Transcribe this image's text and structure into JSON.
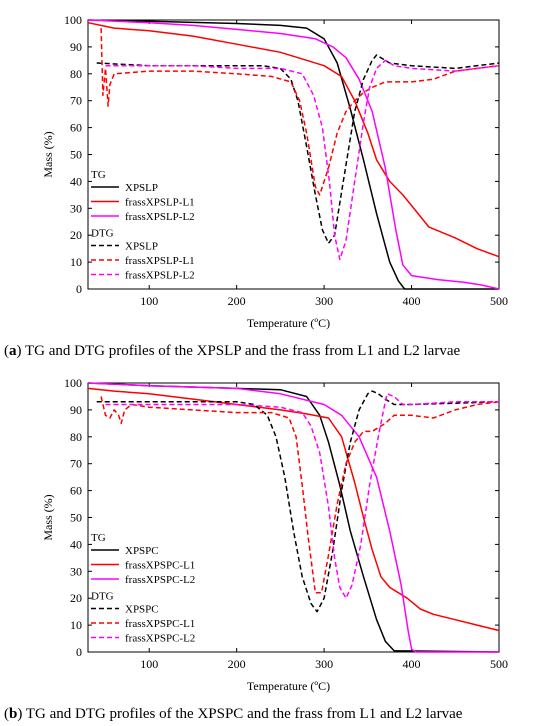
{
  "chart_data": [
    {
      "type": "line",
      "caption_label": "a",
      "caption_text": "TG and DTG profiles of the XPSLP and the frass from L1 and L2 larvae",
      "xlabel": "Temperature (ºC)",
      "ylabel": "Mass (%)",
      "xlim": [
        30,
        500
      ],
      "ylim": [
        0,
        100
      ],
      "xticks": [
        100,
        200,
        300,
        400,
        500
      ],
      "yticks": [
        0,
        10,
        20,
        30,
        40,
        50,
        60,
        70,
        80,
        90,
        100
      ],
      "legend": {
        "position": "left",
        "group_tg": "TG",
        "group_dtg": "DTG"
      },
      "series": [
        {
          "name": "XPSLP",
          "group": "TG",
          "color": "#000000",
          "style": "solid",
          "points": [
            [
              30,
              100
            ],
            [
              100,
              99.5
            ],
            [
              200,
              98.7
            ],
            [
              250,
              98
            ],
            [
              280,
              97
            ],
            [
              300,
              93
            ],
            [
              315,
              84
            ],
            [
              330,
              67
            ],
            [
              345,
              48
            ],
            [
              360,
              28
            ],
            [
              375,
              10
            ],
            [
              385,
              3
            ],
            [
              392,
              0
            ],
            [
              500,
              0
            ]
          ]
        },
        {
          "name": "frassXPSLP-L1",
          "group": "TG",
          "color": "#ff0000",
          "style": "solid",
          "points": [
            [
              30,
              99
            ],
            [
              60,
              97
            ],
            [
              100,
              96
            ],
            [
              150,
              94
            ],
            [
              200,
              91
            ],
            [
              250,
              88
            ],
            [
              280,
              85
            ],
            [
              300,
              83
            ],
            [
              320,
              79
            ],
            [
              335,
              70
            ],
            [
              350,
              58
            ],
            [
              360,
              48
            ],
            [
              375,
              40
            ],
            [
              390,
              35
            ],
            [
              400,
              31
            ],
            [
              420,
              23
            ],
            [
              450,
              19
            ],
            [
              475,
              15
            ],
            [
              500,
              12
            ]
          ]
        },
        {
          "name": "frassXPSLP-L2",
          "group": "TG",
          "color": "#ff00ff",
          "style": "solid",
          "points": [
            [
              30,
              100
            ],
            [
              100,
              99
            ],
            [
              150,
              98
            ],
            [
              200,
              96.5
            ],
            [
              250,
              95
            ],
            [
              290,
              93
            ],
            [
              310,
              90
            ],
            [
              325,
              86
            ],
            [
              340,
              78
            ],
            [
              355,
              66
            ],
            [
              370,
              45
            ],
            [
              382,
              22
            ],
            [
              390,
              9
            ],
            [
              400,
              5
            ],
            [
              430,
              3.5
            ],
            [
              460,
              2.5
            ],
            [
              480,
              1.5
            ],
            [
              500,
              0
            ]
          ]
        },
        {
          "name": "XPSLP",
          "group": "DTG",
          "color": "#000000",
          "style": "dashed",
          "points": [
            [
              40,
              84
            ],
            [
              100,
              83
            ],
            [
              150,
              83
            ],
            [
              200,
              83
            ],
            [
              230,
              83
            ],
            [
              250,
              82
            ],
            [
              262,
              78
            ],
            [
              270,
              70
            ],
            [
              280,
              53
            ],
            [
              290,
              35
            ],
            [
              298,
              22
            ],
            [
              305,
              17
            ],
            [
              312,
              20
            ],
            [
              322,
              40
            ],
            [
              335,
              66
            ],
            [
              345,
              78
            ],
            [
              355,
              85
            ],
            [
              360,
              87
            ],
            [
              365,
              86
            ],
            [
              375,
              84
            ],
            [
              400,
              83
            ],
            [
              450,
              82
            ],
            [
              500,
              84
            ]
          ]
        },
        {
          "name": "frassXPSLP-L1",
          "group": "DTG",
          "color": "#ff0000",
          "style": "dashed",
          "points": [
            [
              45,
              97
            ],
            [
              47,
              72
            ],
            [
              50,
              82
            ],
            [
              53,
              68
            ],
            [
              55,
              76
            ],
            [
              60,
              80
            ],
            [
              100,
              81
            ],
            [
              150,
              81
            ],
            [
              200,
              80
            ],
            [
              240,
              79
            ],
            [
              262,
              77
            ],
            [
              272,
              70
            ],
            [
              280,
              58
            ],
            [
              290,
              38
            ],
            [
              295,
              35
            ],
            [
              305,
              45
            ],
            [
              315,
              58
            ],
            [
              325,
              66
            ],
            [
              335,
              70
            ],
            [
              345,
              73
            ],
            [
              355,
              75
            ],
            [
              370,
              77
            ],
            [
              400,
              77
            ],
            [
              425,
              78
            ],
            [
              450,
              81
            ],
            [
              500,
              83
            ]
          ]
        },
        {
          "name": "frassXPSLP-L2",
          "group": "DTG",
          "color": "#ff00ff",
          "style": "dashed",
          "points": [
            [
              50,
              83
            ],
            [
              100,
              83
            ],
            [
              150,
              83
            ],
            [
              200,
              82
            ],
            [
              250,
              82
            ],
            [
              275,
              80
            ],
            [
              288,
              72
            ],
            [
              298,
              60
            ],
            [
              306,
              40
            ],
            [
              312,
              20
            ],
            [
              318,
              11
            ],
            [
              325,
              18
            ],
            [
              335,
              40
            ],
            [
              345,
              62
            ],
            [
              352,
              75
            ],
            [
              360,
              82
            ],
            [
              370,
              85
            ],
            [
              380,
              83
            ],
            [
              400,
              82
            ],
            [
              450,
              81
            ],
            [
              500,
              83
            ]
          ]
        }
      ]
    },
    {
      "type": "line",
      "caption_label": "b",
      "caption_text": "TG and DTG profiles of the XPSPC and the frass from L1 and L2 larvae",
      "xlabel": "Temperature (ºC)",
      "ylabel": "Mass (%)",
      "xlim": [
        30,
        500
      ],
      "ylim": [
        0,
        100
      ],
      "xticks": [
        100,
        200,
        300,
        400,
        500
      ],
      "yticks": [
        0,
        10,
        20,
        30,
        40,
        50,
        60,
        70,
        80,
        90,
        100
      ],
      "legend": {
        "position": "left",
        "group_tg": "TG",
        "group_dtg": "DTG"
      },
      "series": [
        {
          "name": "XPSPC",
          "group": "TG",
          "color": "#000000",
          "style": "solid",
          "points": [
            [
              30,
              100
            ],
            [
              100,
              99
            ],
            [
              200,
              98
            ],
            [
              250,
              97.5
            ],
            [
              280,
              95
            ],
            [
              295,
              88
            ],
            [
              305,
              78
            ],
            [
              318,
              62
            ],
            [
              330,
              45
            ],
            [
              345,
              28
            ],
            [
              360,
              12
            ],
            [
              370,
              4
            ],
            [
              380,
              0.5
            ],
            [
              500,
              0
            ]
          ]
        },
        {
          "name": "frassXPSPC-L1",
          "group": "TG",
          "color": "#ff0000",
          "style": "solid",
          "points": [
            [
              30,
              98
            ],
            [
              60,
              97
            ],
            [
              100,
              96
            ],
            [
              150,
              94
            ],
            [
              200,
              92
            ],
            [
              250,
              90
            ],
            [
              280,
              88.5
            ],
            [
              305,
              87
            ],
            [
              320,
              80
            ],
            [
              335,
              63
            ],
            [
              345,
              50
            ],
            [
              355,
              38
            ],
            [
              365,
              28
            ],
            [
              375,
              24
            ],
            [
              395,
              20
            ],
            [
              410,
              16
            ],
            [
              425,
              14
            ],
            [
              450,
              12
            ],
            [
              475,
              10
            ],
            [
              500,
              8
            ]
          ]
        },
        {
          "name": "frassXPSPC-L2",
          "group": "TG",
          "color": "#ff00ff",
          "style": "solid",
          "points": [
            [
              30,
              100
            ],
            [
              100,
              99
            ],
            [
              200,
              98
            ],
            [
              250,
              96
            ],
            [
              300,
              92
            ],
            [
              320,
              88
            ],
            [
              340,
              80
            ],
            [
              360,
              65
            ],
            [
              375,
              45
            ],
            [
              388,
              25
            ],
            [
              396,
              8
            ],
            [
              400,
              1
            ],
            [
              405,
              0
            ],
            [
              500,
              0
            ]
          ]
        },
        {
          "name": "XPSPC",
          "group": "DTG",
          "color": "#000000",
          "style": "dashed",
          "points": [
            [
              40,
              93
            ],
            [
              100,
              93
            ],
            [
              150,
              93
            ],
            [
              200,
              93
            ],
            [
              220,
              92
            ],
            [
              235,
              88
            ],
            [
              245,
              80
            ],
            [
              255,
              65
            ],
            [
              265,
              45
            ],
            [
              275,
              28
            ],
            [
              285,
              18
            ],
            [
              292,
              15
            ],
            [
              300,
              20
            ],
            [
              310,
              38
            ],
            [
              320,
              60
            ],
            [
              330,
              78
            ],
            [
              340,
              90
            ],
            [
              350,
              96
            ],
            [
              355,
              97
            ],
            [
              362,
              96
            ],
            [
              370,
              94
            ],
            [
              380,
              92
            ],
            [
              400,
              92
            ],
            [
              450,
              92.5
            ],
            [
              500,
              93
            ]
          ]
        },
        {
          "name": "frassXPSPC-L1",
          "group": "DTG",
          "color": "#ff0000",
          "style": "dashed",
          "points": [
            [
              45,
              95
            ],
            [
              50,
              88
            ],
            [
              55,
              87
            ],
            [
              60,
              90
            ],
            [
              65,
              88
            ],
            [
              68,
              85
            ],
            [
              72,
              90
            ],
            [
              80,
              92
            ],
            [
              100,
              91
            ],
            [
              150,
              90
            ],
            [
              200,
              89
            ],
            [
              240,
              89
            ],
            [
              260,
              87
            ],
            [
              268,
              80
            ],
            [
              275,
              62
            ],
            [
              282,
              42
            ],
            [
              290,
              22
            ],
            [
              297,
              22
            ],
            [
              305,
              36
            ],
            [
              315,
              55
            ],
            [
              325,
              70
            ],
            [
              335,
              78
            ],
            [
              345,
              82
            ],
            [
              355,
              82
            ],
            [
              370,
              85
            ],
            [
              380,
              88
            ],
            [
              400,
              88
            ],
            [
              425,
              87
            ],
            [
              450,
              90
            ],
            [
              475,
              92
            ],
            [
              500,
              93
            ]
          ]
        },
        {
          "name": "frassXPSPC-L2",
          "group": "DTG",
          "color": "#ff00ff",
          "style": "dashed",
          "points": [
            [
              50,
              92
            ],
            [
              100,
              92
            ],
            [
              150,
              92
            ],
            [
              200,
              92
            ],
            [
              250,
              91
            ],
            [
              275,
              89
            ],
            [
              285,
              84
            ],
            [
              295,
              74
            ],
            [
              305,
              54
            ],
            [
              312,
              35
            ],
            [
              318,
              24
            ],
            [
              325,
              20
            ],
            [
              332,
              25
            ],
            [
              342,
              40
            ],
            [
              352,
              62
            ],
            [
              362,
              80
            ],
            [
              368,
              90
            ],
            [
              372,
              96
            ],
            [
              380,
              95
            ],
            [
              390,
              92
            ],
            [
              400,
              92
            ],
            [
              450,
              93
            ],
            [
              500,
              93
            ]
          ]
        }
      ]
    }
  ]
}
